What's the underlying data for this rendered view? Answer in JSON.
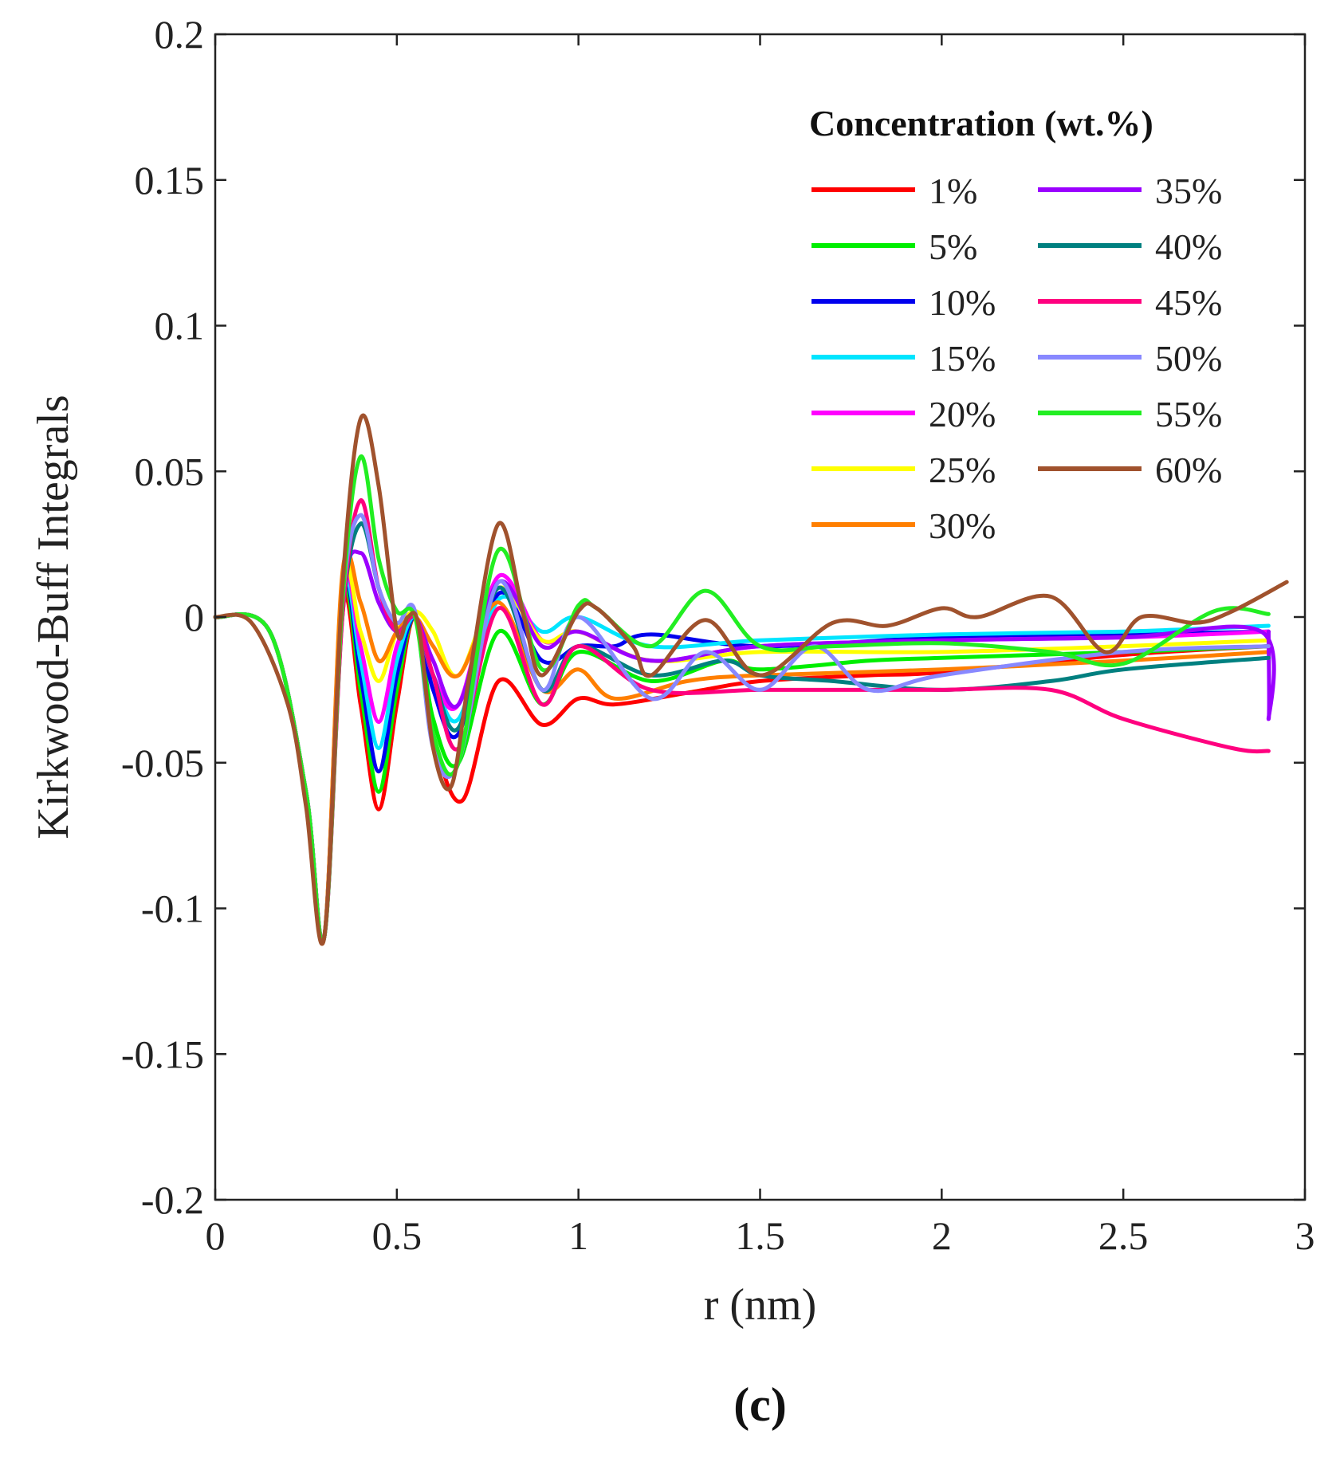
{
  "chart_data": {
    "type": "line",
    "title": "",
    "panel_label": "(c)",
    "xlabel": "r (nm)",
    "ylabel": "Kirkwood-Buff Integrals",
    "xlim": [
      0,
      3
    ],
    "ylim": [
      -0.2,
      0.2
    ],
    "xticks": [
      0,
      0.5,
      1,
      1.5,
      2,
      2.5,
      3
    ],
    "xtick_labels": [
      "0",
      "0.5",
      "1",
      "1.5",
      "2",
      "2.5",
      "3"
    ],
    "yticks": [
      -0.2,
      -0.15,
      -0.1,
      -0.05,
      0,
      0.05,
      0.1,
      0.15,
      0.2
    ],
    "ytick_labels": [
      "-0.2",
      "-0.15",
      "-0.1",
      "-0.05",
      "0",
      "0.05",
      "0.1",
      "0.15",
      "0.2"
    ],
    "grid": false,
    "legend_title": "Concentration (wt.%)",
    "legend_position": "top-right",
    "series": [
      {
        "name": "1%",
        "color": "#ff0000",
        "x": [
          0,
          0.15,
          0.25,
          0.3,
          0.35,
          0.4,
          0.45,
          0.5,
          0.55,
          0.6,
          0.68,
          0.78,
          0.9,
          1.0,
          1.1,
          1.3,
          1.5,
          1.8,
          2.0,
          2.5,
          2.9
        ],
        "y": [
          0,
          -0.005,
          -0.06,
          -0.11,
          0.005,
          -0.03,
          -0.066,
          -0.03,
          0,
          -0.04,
          -0.063,
          -0.022,
          -0.037,
          -0.028,
          -0.03,
          -0.026,
          -0.022,
          -0.02,
          -0.019,
          -0.013,
          -0.01
        ]
      },
      {
        "name": "5%",
        "color": "#00ee00",
        "x": [
          0,
          0.15,
          0.25,
          0.3,
          0.35,
          0.4,
          0.45,
          0.5,
          0.55,
          0.6,
          0.67,
          0.78,
          0.9,
          1.0,
          1.2,
          1.4,
          1.5,
          1.8,
          2.0,
          2.5,
          2.9
        ],
        "y": [
          0,
          -0.005,
          -0.06,
          -0.11,
          0.008,
          -0.025,
          -0.06,
          -0.025,
          0,
          -0.035,
          -0.05,
          -0.005,
          -0.03,
          -0.012,
          -0.022,
          -0.015,
          -0.018,
          -0.015,
          -0.014,
          -0.012,
          -0.01
        ]
      },
      {
        "name": "10%",
        "color": "#0000ee",
        "x": [
          0,
          0.15,
          0.25,
          0.3,
          0.35,
          0.4,
          0.45,
          0.5,
          0.55,
          0.6,
          0.67,
          0.78,
          0.9,
          1.0,
          1.1,
          1.2,
          1.5,
          2.0,
          2.5,
          2.9
        ],
        "y": [
          0,
          -0.005,
          -0.06,
          -0.11,
          0.01,
          -0.02,
          -0.053,
          -0.02,
          0,
          -0.025,
          -0.04,
          0.008,
          -0.015,
          -0.01,
          -0.01,
          -0.006,
          -0.01,
          -0.007,
          -0.006,
          -0.005
        ]
      },
      {
        "name": "15%",
        "color": "#00e5ff",
        "x": [
          0,
          0.15,
          0.25,
          0.3,
          0.35,
          0.4,
          0.45,
          0.5,
          0.55,
          0.6,
          0.67,
          0.78,
          0.9,
          1.0,
          1.2,
          1.5,
          2.0,
          2.5,
          2.9
        ],
        "y": [
          0,
          -0.005,
          -0.06,
          -0.11,
          0.01,
          -0.015,
          -0.045,
          -0.015,
          0,
          -0.02,
          -0.035,
          0.006,
          -0.005,
          0,
          -0.01,
          -0.008,
          -0.006,
          -0.005,
          -0.003
        ]
      },
      {
        "name": "20%",
        "color": "#ff00ff",
        "x": [
          0,
          0.15,
          0.25,
          0.3,
          0.35,
          0.4,
          0.45,
          0.5,
          0.55,
          0.6,
          0.67,
          0.78,
          0.9,
          1.0,
          1.2,
          1.5,
          2.0,
          2.5,
          2.9
        ],
        "y": [
          0,
          -0.005,
          -0.06,
          -0.11,
          0.012,
          -0.01,
          -0.036,
          -0.01,
          0,
          -0.02,
          -0.03,
          0.014,
          -0.008,
          -0.005,
          -0.015,
          -0.01,
          -0.008,
          -0.007,
          -0.005
        ]
      },
      {
        "name": "25%",
        "color": "#ffff00",
        "x": [
          0,
          0.15,
          0.25,
          0.3,
          0.35,
          0.4,
          0.45,
          0.5,
          0.55,
          0.6,
          0.67,
          0.78,
          0.9,
          1.0,
          1.2,
          1.5,
          2.0,
          2.5,
          2.9
        ],
        "y": [
          0,
          -0.005,
          -0.06,
          -0.11,
          0.013,
          -0.005,
          -0.022,
          -0.005,
          0.002,
          -0.005,
          -0.02,
          0.01,
          -0.008,
          -0.005,
          -0.015,
          -0.012,
          -0.012,
          -0.01,
          -0.008
        ]
      },
      {
        "name": "30%",
        "color": "#ff7f00",
        "x": [
          0,
          0.15,
          0.25,
          0.3,
          0.35,
          0.4,
          0.45,
          0.5,
          0.55,
          0.6,
          0.67,
          0.78,
          0.9,
          1.0,
          1.1,
          1.3,
          1.5,
          2.0,
          2.5,
          2.9
        ],
        "y": [
          0,
          -0.005,
          -0.06,
          -0.11,
          0.015,
          0.005,
          -0.015,
          -0.005,
          0,
          -0.01,
          -0.02,
          0.005,
          -0.025,
          -0.018,
          -0.028,
          -0.022,
          -0.02,
          -0.018,
          -0.015,
          -0.012
        ]
      },
      {
        "name": "35%",
        "color": "#9b00ff",
        "x": [
          0,
          0.15,
          0.25,
          0.3,
          0.35,
          0.4,
          0.45,
          0.5,
          0.55,
          0.6,
          0.67,
          0.78,
          0.9,
          1.0,
          1.2,
          1.5,
          2.0,
          2.5,
          2.88,
          2.9,
          2.9
        ],
        "y": [
          0,
          -0.005,
          -0.06,
          -0.11,
          0.005,
          0.022,
          0.005,
          -0.005,
          0,
          -0.015,
          -0.03,
          0.012,
          -0.01,
          -0.005,
          -0.015,
          -0.01,
          -0.008,
          -0.007,
          -0.005,
          -0.035,
          -0.005
        ]
      },
      {
        "name": "40%",
        "color": "#008080",
        "x": [
          0,
          0.15,
          0.25,
          0.3,
          0.35,
          0.4,
          0.45,
          0.5,
          0.55,
          0.6,
          0.67,
          0.78,
          0.9,
          1.0,
          1.2,
          1.4,
          1.5,
          1.7,
          2.0,
          2.3,
          2.5,
          2.9
        ],
        "y": [
          0,
          -0.005,
          -0.06,
          -0.11,
          0.0,
          0.032,
          0.01,
          -0.005,
          0,
          -0.02,
          -0.038,
          0.01,
          -0.025,
          -0.01,
          -0.02,
          -0.015,
          -0.02,
          -0.022,
          -0.025,
          -0.022,
          -0.018,
          -0.014
        ]
      },
      {
        "name": "45%",
        "color": "#ff007f",
        "x": [
          0,
          0.15,
          0.25,
          0.3,
          0.35,
          0.4,
          0.45,
          0.5,
          0.55,
          0.6,
          0.67,
          0.78,
          0.9,
          1.0,
          1.2,
          1.5,
          1.8,
          2.0,
          2.3,
          2.5,
          2.8,
          2.9
        ],
        "y": [
          0,
          -0.005,
          -0.06,
          -0.11,
          0.0,
          0.04,
          0.01,
          -0.005,
          0,
          -0.02,
          -0.045,
          0.003,
          -0.03,
          -0.01,
          -0.025,
          -0.025,
          -0.025,
          -0.025,
          -0.025,
          -0.035,
          -0.045,
          -0.046
        ]
      },
      {
        "name": "50%",
        "color": "#8888ff",
        "x": [
          0,
          0.15,
          0.25,
          0.3,
          0.35,
          0.4,
          0.45,
          0.5,
          0.55,
          0.6,
          0.67,
          0.78,
          0.9,
          1.0,
          1.2,
          1.35,
          1.5,
          1.65,
          1.8,
          2.0,
          2.5,
          2.9
        ],
        "y": [
          0,
          -0.005,
          -0.06,
          -0.11,
          0.005,
          0.035,
          0.01,
          -0.002,
          0.002,
          -0.045,
          -0.05,
          0.012,
          -0.025,
          0.0,
          -0.028,
          -0.012,
          -0.025,
          -0.01,
          -0.025,
          -0.02,
          -0.012,
          -0.01
        ]
      },
      {
        "name": "55%",
        "color": "#22ee22",
        "x": [
          0,
          0.15,
          0.25,
          0.3,
          0.35,
          0.4,
          0.45,
          0.5,
          0.55,
          0.6,
          0.67,
          0.78,
          0.9,
          1.0,
          1.05,
          1.2,
          1.35,
          1.5,
          1.7,
          2.0,
          2.3,
          2.5,
          2.75,
          2.9
        ],
        "y": [
          0,
          -0.005,
          -0.06,
          -0.11,
          0.005,
          0.055,
          0.02,
          0.002,
          0,
          -0.04,
          -0.05,
          0.023,
          -0.018,
          0.004,
          0.003,
          -0.01,
          0.009,
          -0.01,
          -0.01,
          -0.009,
          -0.012,
          -0.016,
          0.002,
          0.001
        ]
      },
      {
        "name": "60%",
        "color": "#a0522d",
        "x": [
          0,
          0.1,
          0.2,
          0.25,
          0.3,
          0.35,
          0.4,
          0.45,
          0.5,
          0.53,
          0.56,
          0.6,
          0.65,
          0.7,
          0.78,
          0.85,
          0.9,
          1.0,
          1.05,
          1.15,
          1.2,
          1.35,
          1.5,
          1.7,
          1.85,
          2.0,
          2.1,
          2.3,
          2.45,
          2.55,
          2.7,
          2.8,
          2.95
        ],
        "y": [
          0,
          -0.002,
          -0.03,
          -0.065,
          -0.11,
          0.01,
          0.068,
          0.045,
          -0.005,
          0.0,
          -0.003,
          -0.045,
          -0.058,
          -0.02,
          0.032,
          0.0,
          -0.02,
          0.002,
          0.003,
          -0.01,
          -0.02,
          -0.001,
          -0.02,
          -0.002,
          -0.003,
          0.003,
          0.0,
          0.007,
          -0.012,
          0.0,
          -0.002,
          0.002,
          0.012
        ]
      }
    ]
  }
}
